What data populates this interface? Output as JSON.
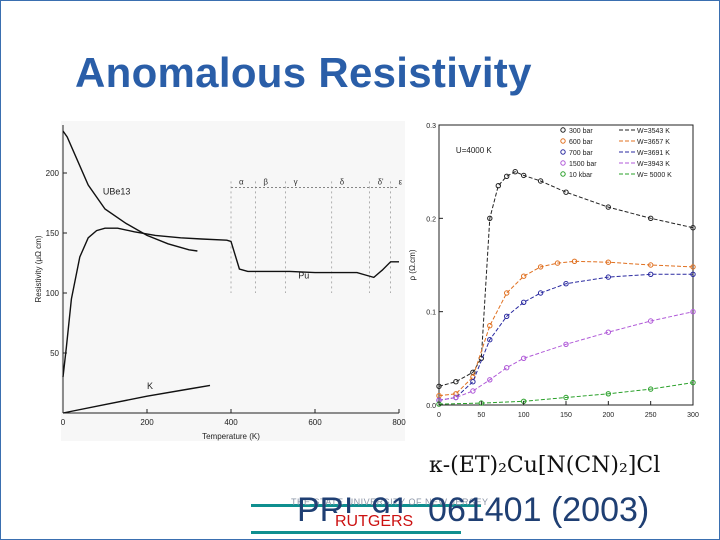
{
  "slide": {
    "title": "Anomalous Resistivity",
    "formula": "κ-(ET)₂Cu[N(CN)₂]Cl",
    "reference": "PRL 91, 061401 (2003)",
    "university": "THE STATE UNIVERSITY OF NEW JERSEY",
    "logo_text": "RUTGERS"
  },
  "chart_data": [
    {
      "type": "line",
      "title": "",
      "xlabel": "Temperature (K)",
      "ylabel": "Resistivity (μΩ cm)",
      "xlim": [
        0,
        800
      ],
      "ylim": [
        0,
        240
      ],
      "x_ticks": [
        "0",
        "200",
        "400",
        "600",
        "800"
      ],
      "y_ticks": [
        "50",
        "100",
        "150",
        "200"
      ],
      "grid": false,
      "annotations": [
        {
          "text": "UBe13",
          "x": 95,
          "y": 182
        },
        {
          "text": "Pu",
          "x": 560,
          "y": 112
        },
        {
          "text": "K",
          "x": 200,
          "y": 20
        }
      ],
      "phase_labels": [
        "α",
        "β",
        "γ",
        "δ",
        "δ'",
        "ε"
      ],
      "series": [
        {
          "name": "UBe13",
          "x": [
            0,
            10,
            30,
            60,
            100,
            150,
            200,
            250,
            300,
            320
          ],
          "y": [
            235,
            230,
            214,
            190,
            170,
            158,
            148,
            141,
            136,
            135
          ]
        },
        {
          "name": "Pu",
          "x": [
            0,
            8,
            20,
            40,
            60,
            80,
            100,
            130,
            170,
            220,
            280,
            330,
            390,
            400,
            420,
            440,
            460,
            480,
            500,
            530,
            540,
            600,
            650,
            700,
            720,
            740,
            760,
            780,
            800
          ],
          "y": [
            30,
            55,
            95,
            130,
            146,
            152,
            154,
            154,
            151,
            148,
            146,
            145,
            144,
            143,
            120,
            118,
            118,
            118,
            118,
            118,
            118,
            117,
            117,
            117,
            115,
            113,
            119,
            126,
            126
          ]
        },
        {
          "name": "K",
          "x": [
            0,
            100,
            200,
            300,
            350
          ],
          "y": [
            0,
            7,
            14,
            20,
            23
          ]
        }
      ]
    },
    {
      "type": "scatter",
      "title": "",
      "xlabel": "",
      "ylabel": "ρ (Ω.cm)",
      "xlim": [
        0,
        300
      ],
      "ylim": [
        0,
        0.3
      ],
      "x_ticks": [
        "0",
        "50",
        "100",
        "150",
        "200",
        "250",
        "300"
      ],
      "y_ticks": [
        "0.0",
        "0.1",
        "0.2",
        "0.3"
      ],
      "annotations": [
        {
          "text": "U=4000 K",
          "x": 20,
          "y": 0.27
        }
      ],
      "legend_position": "top-right",
      "series": [
        {
          "name": "300 bar",
          "fit_label": "W=3543 K",
          "color": "#222222",
          "x": [
            0,
            20,
            40,
            50,
            60,
            70,
            80,
            90,
            100,
            120,
            150,
            200,
            250,
            300
          ],
          "y": [
            0.02,
            0.025,
            0.035,
            0.05,
            0.2,
            0.235,
            0.245,
            0.25,
            0.246,
            0.24,
            0.228,
            0.212,
            0.2,
            0.19
          ]
        },
        {
          "name": "600 bar",
          "fit_label": "W=3657 K",
          "color": "#e07020",
          "x": [
            0,
            20,
            40,
            60,
            80,
            100,
            120,
            140,
            160,
            200,
            250,
            300
          ],
          "y": [
            0.01,
            0.012,
            0.03,
            0.085,
            0.12,
            0.138,
            0.148,
            0.152,
            0.154,
            0.153,
            0.15,
            0.148
          ]
        },
        {
          "name": "700 bar",
          "fit_label": "W=3691 K",
          "color": "#2a2aa0",
          "x": [
            0,
            20,
            40,
            60,
            80,
            100,
            120,
            150,
            200,
            250,
            300
          ],
          "y": [
            0.005,
            0.008,
            0.025,
            0.07,
            0.095,
            0.11,
            0.12,
            0.13,
            0.137,
            0.14,
            0.14
          ]
        },
        {
          "name": "1500 bar",
          "fit_label": "W=3943 K",
          "color": "#b05ad8",
          "x": [
            0,
            20,
            40,
            60,
            80,
            100,
            150,
            200,
            250,
            300
          ],
          "y": [
            0.005,
            0.008,
            0.015,
            0.027,
            0.04,
            0.05,
            0.065,
            0.078,
            0.09,
            0.1
          ]
        },
        {
          "name": "10 kbar",
          "fit_label": "W= 5000 K",
          "color": "#2aa02a",
          "x": [
            0,
            50,
            100,
            150,
            200,
            250,
            300
          ],
          "y": [
            0.001,
            0.002,
            0.004,
            0.008,
            0.012,
            0.017,
            0.024
          ]
        }
      ]
    }
  ]
}
